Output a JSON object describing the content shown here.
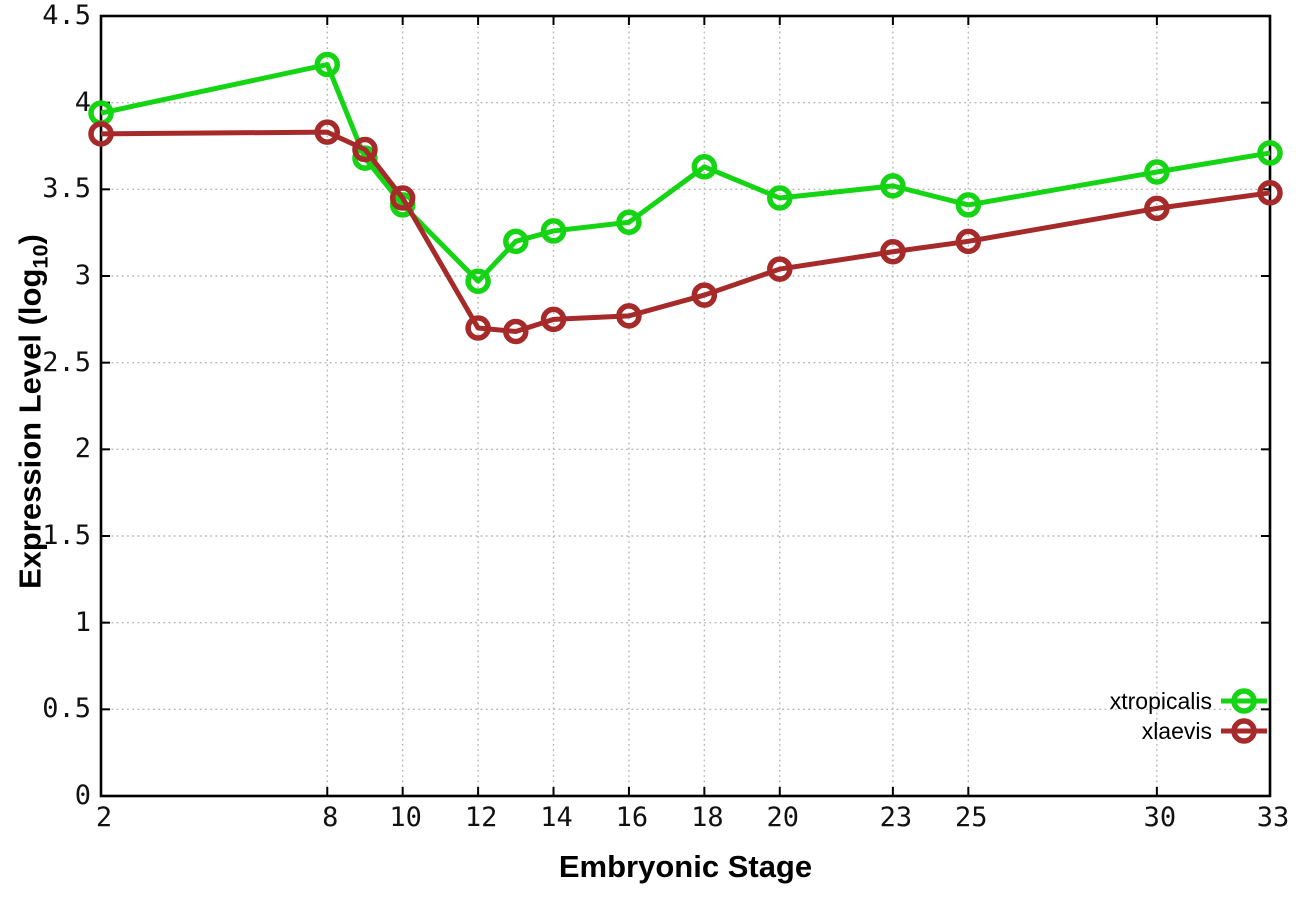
{
  "chart_data": {
    "type": "line",
    "title": "",
    "xlabel": "Embryonic Stage",
    "ylabel": "Expression Level (log10)",
    "ylabel_parts": {
      "prefix": "Expression Level (log",
      "sub": "10",
      "suffix": ")"
    },
    "x": [
      2,
      8,
      9,
      10,
      12,
      13,
      14,
      16,
      18,
      20,
      23,
      25,
      30,
      33
    ],
    "series": [
      {
        "name": "xtropicalis",
        "color": "#14d414",
        "marker": "open-circle",
        "values": [
          3.94,
          4.22,
          3.68,
          3.41,
          2.97,
          3.2,
          3.26,
          3.31,
          3.63,
          3.45,
          3.52,
          3.41,
          3.6,
          3.71
        ]
      },
      {
        "name": "xlaevis",
        "color": "#a62a2a",
        "marker": "open-circle",
        "values": [
          3.82,
          3.83,
          3.73,
          3.45,
          2.7,
          2.68,
          2.75,
          2.77,
          2.89,
          3.04,
          3.14,
          3.2,
          3.39,
          3.48
        ]
      }
    ],
    "xlim": [
      2,
      33
    ],
    "ylim": [
      0,
      4.5
    ],
    "x_ticks": {
      "values": [
        2,
        8,
        10,
        12,
        14,
        16,
        18,
        20,
        23,
        25,
        30,
        33
      ],
      "labels": [
        "2",
        "8",
        "10",
        "12",
        "14",
        "16",
        "18",
        "20",
        "23",
        "25",
        "30",
        "33"
      ]
    },
    "y_ticks": {
      "values": [
        0,
        0.5,
        1,
        1.5,
        2,
        2.5,
        3,
        3.5,
        4,
        4.5
      ],
      "labels": [
        "0",
        "0.5",
        "1",
        "1.5",
        "2",
        "2.5",
        "3",
        "3.5",
        "4",
        "4.5"
      ]
    },
    "grid": true,
    "grid_color": "#b8b8b8",
    "axis_color": "#000000",
    "legend_position": "bottom-right",
    "legend": [
      {
        "label": "xtropicalis"
      },
      {
        "label": "xlaevis"
      }
    ]
  }
}
